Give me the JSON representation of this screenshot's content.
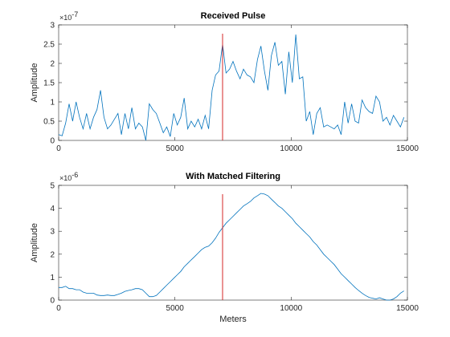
{
  "chart_data": [
    {
      "type": "line",
      "title": "Received Pulse",
      "xlabel": "",
      "ylabel": "Amplitude",
      "y_exponent_base": "×10",
      "y_exponent": "-7",
      "xlim": [
        0,
        15000
      ],
      "ylim": [
        0,
        3
      ],
      "x_ticks": [
        0,
        5000,
        10000,
        15000
      ],
      "y_ticks": [
        0,
        0.5,
        1,
        1.5,
        2,
        2.5,
        3
      ],
      "series_color": "#0072bd",
      "marker_color": "#d62728",
      "marker_x": 7050,
      "x": [
        0,
        150,
        300,
        450,
        600,
        750,
        900,
        1050,
        1200,
        1350,
        1500,
        1650,
        1800,
        1950,
        2100,
        2250,
        2400,
        2550,
        2700,
        2850,
        3000,
        3150,
        3300,
        3450,
        3600,
        3750,
        3900,
        4050,
        4200,
        4350,
        4500,
        4650,
        4800,
        4950,
        5100,
        5250,
        5400,
        5550,
        5700,
        5850,
        6000,
        6150,
        6300,
        6450,
        6600,
        6750,
        6900,
        7050,
        7200,
        7350,
        7500,
        7650,
        7800,
        7950,
        8100,
        8250,
        8400,
        8550,
        8700,
        8850,
        9000,
        9150,
        9300,
        9450,
        9600,
        9750,
        9900,
        10050,
        10200,
        10350,
        10500,
        10650,
        10800,
        10950,
        11100,
        11250,
        11400,
        11550,
        11700,
        11850,
        12000,
        12150,
        12300,
        12450,
        12600,
        12750,
        12900,
        13050,
        13200,
        13350,
        13500,
        13650,
        13800,
        13950,
        14100,
        14250,
        14400,
        14550,
        14700,
        14850
      ],
      "values": [
        0.15,
        0.12,
        0.45,
        0.95,
        0.5,
        1.0,
        0.6,
        0.3,
        0.7,
        0.3,
        0.6,
        0.8,
        1.3,
        0.6,
        0.3,
        0.4,
        0.55,
        0.7,
        0.15,
        0.7,
        0.3,
        0.85,
        0.3,
        0.45,
        0.35,
        0.0,
        0.95,
        0.8,
        0.7,
        0.45,
        0.2,
        0.35,
        0.1,
        0.7,
        0.4,
        0.6,
        1.1,
        0.3,
        0.5,
        0.35,
        0.55,
        0.3,
        0.65,
        0.3,
        1.3,
        1.7,
        1.8,
        2.5,
        1.75,
        1.85,
        2.05,
        1.8,
        1.6,
        1.85,
        1.7,
        1.65,
        1.5,
        2.1,
        2.45,
        1.8,
        1.3,
        2.2,
        2.55,
        1.95,
        2.05,
        1.2,
        2.3,
        1.5,
        2.75,
        1.6,
        1.65,
        0.5,
        0.75,
        0.15,
        0.7,
        0.85,
        0.35,
        0.4,
        0.35,
        0.3,
        0.4,
        0.15,
        1.0,
        0.45,
        0.95,
        0.5,
        0.45,
        1.05,
        0.85,
        0.75,
        0.7,
        1.15,
        1.0,
        0.5,
        0.6,
        0.4,
        0.65,
        0.5,
        0.35,
        0.6
      ],
      "grid": false
    },
    {
      "type": "line",
      "title": "With Matched Filtering",
      "xlabel": "Meters",
      "ylabel": "Amplitude",
      "y_exponent_base": "×10",
      "y_exponent": "-6",
      "xlim": [
        0,
        15000
      ],
      "ylim": [
        0,
        5
      ],
      "x_ticks": [
        0,
        5000,
        10000,
        15000
      ],
      "y_ticks": [
        0,
        1,
        2,
        3,
        4,
        5
      ],
      "series_color": "#0072bd",
      "marker_color": "#d62728",
      "marker_x": 7050,
      "x": [
        0,
        150,
        300,
        450,
        600,
        750,
        900,
        1050,
        1200,
        1350,
        1500,
        1650,
        1800,
        1950,
        2100,
        2250,
        2400,
        2550,
        2700,
        2850,
        3000,
        3150,
        3300,
        3450,
        3600,
        3750,
        3900,
        4050,
        4200,
        4350,
        4500,
        4650,
        4800,
        4950,
        5100,
        5250,
        5400,
        5550,
        5700,
        5850,
        6000,
        6150,
        6300,
        6450,
        6600,
        6750,
        6900,
        7050,
        7200,
        7350,
        7500,
        7650,
        7800,
        7950,
        8100,
        8250,
        8400,
        8550,
        8700,
        8850,
        9000,
        9150,
        9300,
        9450,
        9600,
        9750,
        9900,
        10050,
        10200,
        10350,
        10500,
        10650,
        10800,
        10950,
        11100,
        11250,
        11400,
        11550,
        11700,
        11850,
        12000,
        12150,
        12300,
        12450,
        12600,
        12750,
        12900,
        13050,
        13200,
        13350,
        13500,
        13650,
        13800,
        13950,
        14100,
        14250,
        14400,
        14550,
        14700,
        14850
      ],
      "values": [
        0.55,
        0.55,
        0.6,
        0.5,
        0.5,
        0.45,
        0.45,
        0.35,
        0.3,
        0.3,
        0.3,
        0.22,
        0.2,
        0.2,
        0.22,
        0.2,
        0.2,
        0.25,
        0.3,
        0.38,
        0.42,
        0.45,
        0.5,
        0.5,
        0.45,
        0.3,
        0.15,
        0.15,
        0.2,
        0.35,
        0.5,
        0.65,
        0.8,
        0.95,
        1.1,
        1.25,
        1.45,
        1.6,
        1.75,
        1.9,
        2.05,
        2.2,
        2.3,
        2.35,
        2.5,
        2.7,
        2.95,
        3.15,
        3.35,
        3.5,
        3.65,
        3.8,
        3.95,
        4.1,
        4.2,
        4.3,
        4.45,
        4.55,
        4.65,
        4.62,
        4.55,
        4.4,
        4.25,
        4.1,
        4.0,
        3.85,
        3.7,
        3.55,
        3.35,
        3.2,
        3.05,
        2.9,
        2.75,
        2.55,
        2.4,
        2.2,
        2.0,
        1.85,
        1.7,
        1.55,
        1.35,
        1.15,
        1.0,
        0.85,
        0.7,
        0.55,
        0.42,
        0.3,
        0.2,
        0.12,
        0.08,
        0.05,
        0.1,
        0.05,
        0.0,
        0.0,
        0.05,
        0.15,
        0.3,
        0.4
      ],
      "grid": false
    }
  ]
}
